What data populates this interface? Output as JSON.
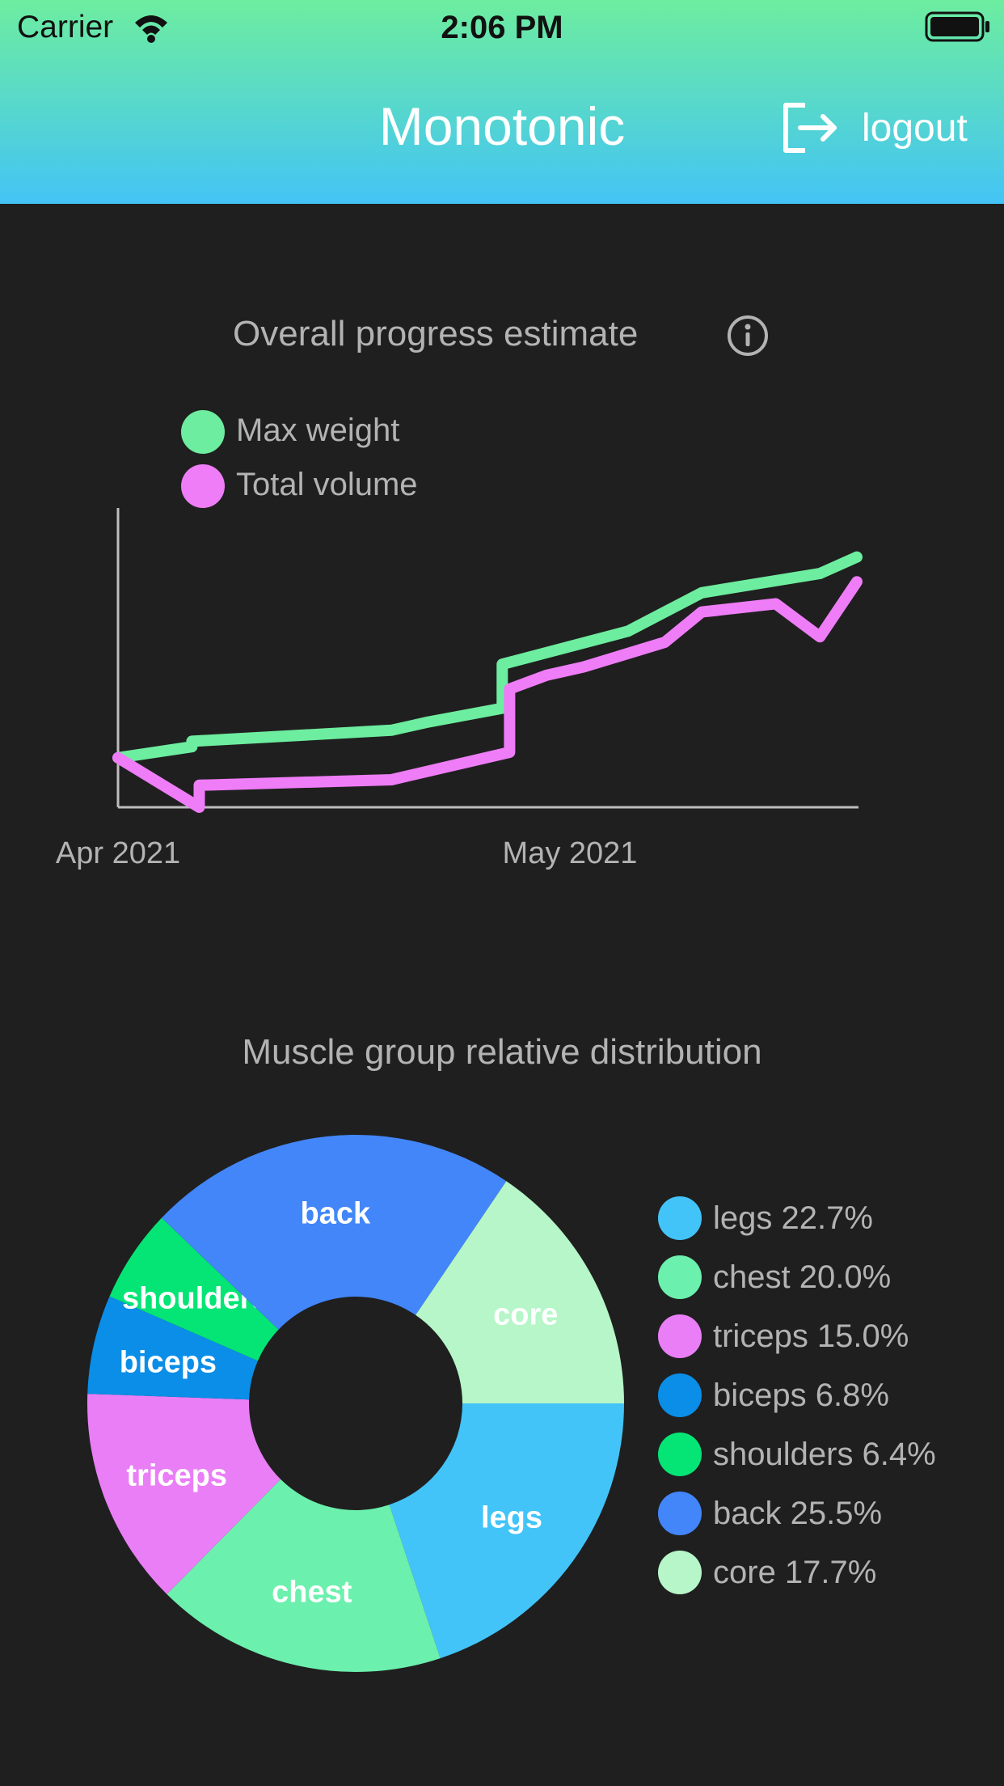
{
  "status_bar": {
    "carrier": "Carrier",
    "time": "2:06 PM"
  },
  "header": {
    "title": "Monotonic",
    "logout_label": "logout",
    "logout_icon": "logout-icon"
  },
  "progress": {
    "title": "Overall progress estimate",
    "info_icon": "info-icon",
    "legend": [
      {
        "label": "Max weight",
        "color": "#6ded9f"
      },
      {
        "label": "Total volume",
        "color": "#ee7df7"
      }
    ]
  },
  "distribution": {
    "title": "Muscle group relative distribution"
  },
  "chart_data": [
    {
      "type": "line",
      "title": "Overall progress estimate",
      "x_tick_labels": [
        "Apr 2021",
        "May 2021"
      ],
      "y_axis": "unlabeled",
      "grid": false,
      "legend_placement": "top-left",
      "series": [
        {
          "name": "Max weight",
          "color": "#6ded9f",
          "points": [
            [
              0,
              0.18
            ],
            [
              0.1,
              0.22
            ],
            [
              0.1,
              0.24
            ],
            [
              0.37,
              0.28
            ],
            [
              0.42,
              0.31
            ],
            [
              0.52,
              0.36
            ],
            [
              0.52,
              0.52
            ],
            [
              0.69,
              0.64
            ],
            [
              0.79,
              0.78
            ],
            [
              0.95,
              0.85
            ],
            [
              1.0,
              0.91
            ]
          ]
        },
        {
          "name": "Total volume",
          "color": "#ee7df7",
          "points": [
            [
              0,
              0.18
            ],
            [
              0.11,
              0.0
            ],
            [
              0.11,
              0.08
            ],
            [
              0.37,
              0.1
            ],
            [
              0.53,
              0.2
            ],
            [
              0.53,
              0.43
            ],
            [
              0.58,
              0.48
            ],
            [
              0.63,
              0.51
            ],
            [
              0.74,
              0.6
            ],
            [
              0.79,
              0.71
            ],
            [
              0.89,
              0.74
            ],
            [
              0.95,
              0.62
            ],
            [
              1.0,
              0.82
            ]
          ]
        }
      ]
    },
    {
      "type": "pie",
      "title": "Muscle group relative distribution",
      "donut": true,
      "legend_placement": "right",
      "slices": [
        {
          "label": "legs",
          "legend": "legs 22.7%",
          "value": 22.7,
          "color": "#42c4f9"
        },
        {
          "label": "chest",
          "legend": "chest 20.0%",
          "value": 20.0,
          "color": "#6cf0ad"
        },
        {
          "label": "triceps",
          "legend": "triceps 15.0%",
          "value": 15.0,
          "color": "#ea7ef6"
        },
        {
          "label": "biceps",
          "legend": "biceps 6.8%",
          "value": 6.8,
          "color": "#0a8ee8"
        },
        {
          "label": "shoulders",
          "legend": "shoulders 6.4%",
          "value": 6.4,
          "color": "#05e575"
        },
        {
          "label": "back",
          "legend": "back 25.5%",
          "value": 25.5,
          "color": "#4286f9"
        },
        {
          "label": "core",
          "legend": "core 17.7%",
          "value": 17.7,
          "color": "#b6f6c8"
        }
      ]
    }
  ]
}
